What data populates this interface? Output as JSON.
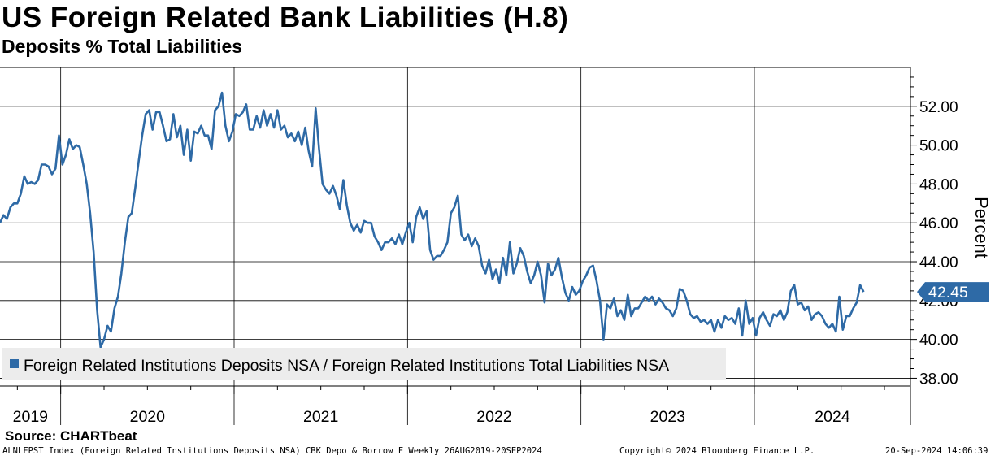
{
  "title": "US Foreign Related Bank Liabilities (H.8)",
  "subtitle": "Deposits % Total Liabilities",
  "source": "Source: CHARTbeat",
  "footer": {
    "left": "ALNLFPST Index (Foreign Related Institutions Deposits NSA) CBK Depo & Borrow F  Weekly 26AUG2019-20SEP2024",
    "middle": "Copyright© 2024 Bloomberg Finance L.P.",
    "right": "20-Sep-2024 14:06:39"
  },
  "colors": {
    "line": "#2e6aa6",
    "badge": "#2e6aa6",
    "legend_bg": "#ececec"
  },
  "chart_data": {
    "type": "line",
    "title": "US Foreign Related Bank Liabilities (H.8)",
    "subtitle": "Deposits % Total Liabilities",
    "ylabel": "Percent",
    "ylim": [
      37.6,
      54.0
    ],
    "yticks": [
      38,
      40,
      42,
      44,
      46,
      48,
      50,
      52
    ],
    "ytick_labels": [
      "38.00",
      "40.00",
      "42.00",
      "44.00",
      "46.00",
      "48.00",
      "50.00",
      "52.00"
    ],
    "xlim": [
      2019.65,
      2024.9
    ],
    "year_labels": [
      {
        "year": 2019,
        "label": "2019"
      },
      {
        "year": 2020,
        "label": "2020"
      },
      {
        "year": 2021,
        "label": "2021"
      },
      {
        "year": 2022,
        "label": "2022"
      },
      {
        "year": 2023,
        "label": "2023"
      },
      {
        "year": 2024,
        "label": "2024"
      }
    ],
    "last_value": 42.45,
    "last_value_label": "42.45",
    "legend_position": "bottom-left",
    "series": [
      {
        "name": "Foreign Related Institutions Deposits NSA / Foreign Related Institutions Total Liabilities NSA",
        "points": [
          [
            2019.65,
            46.0
          ],
          [
            2019.67,
            46.4
          ],
          [
            2019.69,
            46.2
          ],
          [
            2019.71,
            46.8
          ],
          [
            2019.73,
            47.0
          ],
          [
            2019.75,
            47.0
          ],
          [
            2019.77,
            47.5
          ],
          [
            2019.79,
            48.4
          ],
          [
            2019.81,
            48.0
          ],
          [
            2019.83,
            48.1
          ],
          [
            2019.85,
            48.0
          ],
          [
            2019.87,
            48.2
          ],
          [
            2019.89,
            49.0
          ],
          [
            2019.91,
            49.0
          ],
          [
            2019.93,
            48.9
          ],
          [
            2019.95,
            48.5
          ],
          [
            2019.97,
            48.8
          ],
          [
            2019.99,
            50.5
          ],
          [
            2020.01,
            49.0
          ],
          [
            2020.03,
            49.5
          ],
          [
            2020.05,
            50.3
          ],
          [
            2020.07,
            49.8
          ],
          [
            2020.09,
            50.0
          ],
          [
            2020.11,
            49.9
          ],
          [
            2020.13,
            49.0
          ],
          [
            2020.15,
            48.0
          ],
          [
            2020.17,
            46.5
          ],
          [
            2020.19,
            44.5
          ],
          [
            2020.21,
            41.5
          ],
          [
            2020.23,
            39.6
          ],
          [
            2020.25,
            40.0
          ],
          [
            2020.27,
            40.7
          ],
          [
            2020.29,
            40.4
          ],
          [
            2020.31,
            41.6
          ],
          [
            2020.33,
            42.2
          ],
          [
            2020.35,
            43.4
          ],
          [
            2020.37,
            45.0
          ],
          [
            2020.39,
            46.3
          ],
          [
            2020.41,
            46.5
          ],
          [
            2020.43,
            47.8
          ],
          [
            2020.45,
            49.2
          ],
          [
            2020.47,
            50.5
          ],
          [
            2020.49,
            51.6
          ],
          [
            2020.51,
            51.8
          ],
          [
            2020.53,
            50.8
          ],
          [
            2020.55,
            51.7
          ],
          [
            2020.57,
            51.7
          ],
          [
            2020.59,
            51.0
          ],
          [
            2020.61,
            50.2
          ],
          [
            2020.63,
            50.3
          ],
          [
            2020.65,
            51.6
          ],
          [
            2020.67,
            50.4
          ],
          [
            2020.69,
            51.0
          ],
          [
            2020.71,
            49.5
          ],
          [
            2020.73,
            50.8
          ],
          [
            2020.75,
            49.2
          ],
          [
            2020.77,
            50.7
          ],
          [
            2020.79,
            50.6
          ],
          [
            2020.81,
            51.0
          ],
          [
            2020.83,
            50.5
          ],
          [
            2020.85,
            50.5
          ],
          [
            2020.87,
            49.8
          ],
          [
            2020.89,
            51.8
          ],
          [
            2020.91,
            52.0
          ],
          [
            2020.93,
            52.7
          ],
          [
            2020.95,
            51.0
          ],
          [
            2020.97,
            50.2
          ],
          [
            2020.99,
            50.7
          ],
          [
            2021.01,
            51.6
          ],
          [
            2021.03,
            51.5
          ],
          [
            2021.05,
            51.7
          ],
          [
            2021.07,
            52.1
          ],
          [
            2021.09,
            50.8
          ],
          [
            2021.11,
            50.8
          ],
          [
            2021.13,
            51.5
          ],
          [
            2021.15,
            50.9
          ],
          [
            2021.17,
            51.8
          ],
          [
            2021.19,
            51.0
          ],
          [
            2021.21,
            51.6
          ],
          [
            2021.23,
            50.9
          ],
          [
            2021.25,
            51.8
          ],
          [
            2021.27,
            50.8
          ],
          [
            2021.29,
            51.0
          ],
          [
            2021.31,
            50.4
          ],
          [
            2021.33,
            50.6
          ],
          [
            2021.35,
            50.2
          ],
          [
            2021.37,
            50.7
          ],
          [
            2021.39,
            50.0
          ],
          [
            2021.41,
            50.9
          ],
          [
            2021.43,
            49.7
          ],
          [
            2021.45,
            48.9
          ],
          [
            2021.47,
            51.9
          ],
          [
            2021.49,
            49.8
          ],
          [
            2021.51,
            48.0
          ],
          [
            2021.53,
            47.7
          ],
          [
            2021.55,
            47.5
          ],
          [
            2021.57,
            47.9
          ],
          [
            2021.59,
            47.4
          ],
          [
            2021.61,
            46.7
          ],
          [
            2021.63,
            48.2
          ],
          [
            2021.65,
            46.9
          ],
          [
            2021.67,
            46.0
          ],
          [
            2021.69,
            45.6
          ],
          [
            2021.71,
            45.9
          ],
          [
            2021.73,
            45.5
          ],
          [
            2021.75,
            46.1
          ],
          [
            2021.77,
            46.0
          ],
          [
            2021.79,
            46.0
          ],
          [
            2021.81,
            45.3
          ],
          [
            2021.83,
            45.0
          ],
          [
            2021.85,
            44.6
          ],
          [
            2021.87,
            45.0
          ],
          [
            2021.89,
            45.0
          ],
          [
            2021.91,
            45.2
          ],
          [
            2021.93,
            44.9
          ],
          [
            2021.95,
            45.4
          ],
          [
            2021.97,
            44.9
          ],
          [
            2021.99,
            45.5
          ],
          [
            2022.01,
            46.0
          ],
          [
            2022.03,
            45.0
          ],
          [
            2022.05,
            46.3
          ],
          [
            2022.07,
            46.8
          ],
          [
            2022.09,
            46.2
          ],
          [
            2022.11,
            46.6
          ],
          [
            2022.13,
            44.6
          ],
          [
            2022.15,
            44.1
          ],
          [
            2022.17,
            44.3
          ],
          [
            2022.19,
            44.3
          ],
          [
            2022.21,
            44.6
          ],
          [
            2022.23,
            45.0
          ],
          [
            2022.25,
            46.5
          ],
          [
            2022.27,
            46.8
          ],
          [
            2022.29,
            47.4
          ],
          [
            2022.31,
            45.4
          ],
          [
            2022.33,
            45.1
          ],
          [
            2022.35,
            45.4
          ],
          [
            2022.37,
            44.8
          ],
          [
            2022.39,
            45.2
          ],
          [
            2022.41,
            44.8
          ],
          [
            2022.43,
            43.8
          ],
          [
            2022.45,
            43.4
          ],
          [
            2022.47,
            44.1
          ],
          [
            2022.49,
            43.1
          ],
          [
            2022.51,
            43.6
          ],
          [
            2022.53,
            42.9
          ],
          [
            2022.55,
            44.2
          ],
          [
            2022.57,
            43.3
          ],
          [
            2022.59,
            45.0
          ],
          [
            2022.61,
            43.4
          ],
          [
            2022.63,
            43.9
          ],
          [
            2022.65,
            44.7
          ],
          [
            2022.67,
            44.3
          ],
          [
            2022.69,
            43.5
          ],
          [
            2022.71,
            42.9
          ],
          [
            2022.73,
            43.3
          ],
          [
            2022.75,
            44.0
          ],
          [
            2022.77,
            43.3
          ],
          [
            2022.79,
            41.9
          ],
          [
            2022.81,
            43.9
          ],
          [
            2022.83,
            43.3
          ],
          [
            2022.85,
            43.6
          ],
          [
            2022.87,
            44.2
          ],
          [
            2022.89,
            43.2
          ],
          [
            2022.91,
            42.4
          ],
          [
            2022.93,
            42.0
          ],
          [
            2022.95,
            42.7
          ],
          [
            2022.97,
            42.3
          ],
          [
            2022.99,
            42.5
          ],
          [
            2023.01,
            43.0
          ],
          [
            2023.03,
            43.3
          ],
          [
            2023.05,
            43.7
          ],
          [
            2023.07,
            43.8
          ],
          [
            2023.09,
            43.0
          ],
          [
            2023.11,
            42.0
          ],
          [
            2023.13,
            40.0
          ],
          [
            2023.15,
            41.8
          ],
          [
            2023.17,
            41.6
          ],
          [
            2023.19,
            42.1
          ],
          [
            2023.21,
            41.2
          ],
          [
            2023.23,
            41.5
          ],
          [
            2023.25,
            41.0
          ],
          [
            2023.27,
            42.3
          ],
          [
            2023.29,
            41.2
          ],
          [
            2023.31,
            41.6
          ],
          [
            2023.33,
            41.6
          ],
          [
            2023.35,
            41.9
          ],
          [
            2023.37,
            42.2
          ],
          [
            2023.39,
            42.0
          ],
          [
            2023.41,
            42.2
          ],
          [
            2023.43,
            41.8
          ],
          [
            2023.45,
            42.1
          ],
          [
            2023.47,
            41.9
          ],
          [
            2023.49,
            41.6
          ],
          [
            2023.51,
            41.5
          ],
          [
            2023.53,
            41.2
          ],
          [
            2023.55,
            41.6
          ],
          [
            2023.57,
            42.6
          ],
          [
            2023.59,
            42.5
          ],
          [
            2023.61,
            42.0
          ],
          [
            2023.63,
            41.3
          ],
          [
            2023.65,
            41.1
          ],
          [
            2023.67,
            41.2
          ],
          [
            2023.69,
            40.9
          ],
          [
            2023.71,
            41.0
          ],
          [
            2023.73,
            40.8
          ],
          [
            2023.75,
            41.0
          ],
          [
            2023.77,
            40.4
          ],
          [
            2023.79,
            41.0
          ],
          [
            2023.81,
            40.6
          ],
          [
            2023.83,
            41.2
          ],
          [
            2023.85,
            41.0
          ],
          [
            2023.87,
            41.1
          ],
          [
            2023.89,
            40.8
          ],
          [
            2023.91,
            41.6
          ],
          [
            2023.93,
            40.2
          ],
          [
            2023.95,
            42.0
          ],
          [
            2023.97,
            40.8
          ],
          [
            2023.99,
            41.1
          ],
          [
            2024.01,
            40.2
          ],
          [
            2024.03,
            41.1
          ],
          [
            2024.05,
            41.4
          ],
          [
            2024.07,
            41.0
          ],
          [
            2024.09,
            40.7
          ],
          [
            2024.11,
            41.3
          ],
          [
            2024.13,
            41.2
          ],
          [
            2024.15,
            41.5
          ],
          [
            2024.17,
            41.0
          ],
          [
            2024.19,
            41.4
          ],
          [
            2024.21,
            42.5
          ],
          [
            2024.23,
            42.8
          ],
          [
            2024.25,
            41.8
          ],
          [
            2024.27,
            41.9
          ],
          [
            2024.29,
            41.5
          ],
          [
            2024.31,
            41.7
          ],
          [
            2024.33,
            41.0
          ],
          [
            2024.35,
            41.3
          ],
          [
            2024.37,
            41.4
          ],
          [
            2024.39,
            41.2
          ],
          [
            2024.41,
            40.8
          ],
          [
            2024.43,
            40.6
          ],
          [
            2024.45,
            40.8
          ],
          [
            2024.47,
            40.4
          ],
          [
            2024.49,
            42.2
          ],
          [
            2024.51,
            40.5
          ],
          [
            2024.53,
            41.2
          ],
          [
            2024.55,
            41.2
          ],
          [
            2024.57,
            41.6
          ],
          [
            2024.59,
            41.9
          ],
          [
            2024.61,
            42.8
          ],
          [
            2024.63,
            42.45
          ]
        ]
      }
    ]
  }
}
